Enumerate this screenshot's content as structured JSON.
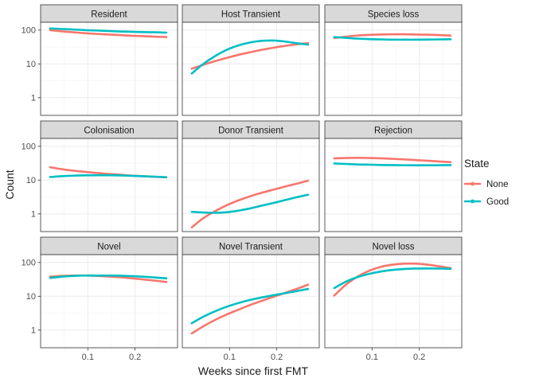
{
  "chart_data": {
    "type": "line",
    "facet_layout": "3x3",
    "xlabel": "Weeks since first FMT",
    "ylabel": "Count",
    "xlim": [
      0.0,
      0.29
    ],
    "ylim": [
      0.3,
      170
    ],
    "y_scale": "log10",
    "x_ticks": [
      0.1,
      0.2
    ],
    "x_tick_labels": [
      "0.1",
      "0.2"
    ],
    "y_ticks": [
      1,
      10,
      100
    ],
    "y_tick_labels": [
      "1",
      "10",
      "100"
    ],
    "grid": true,
    "legend": {
      "title": "State",
      "placement": "right",
      "entries": [
        {
          "name": "None",
          "color": "#F8766D"
        },
        {
          "name": "Good",
          "color": "#00BFC4"
        }
      ]
    },
    "x": [
      0.02,
      0.0446,
      0.0693,
      0.0939,
      0.1186,
      0.1432,
      0.1679,
      0.1925,
      0.2171,
      0.2418,
      0.2664
    ],
    "panels": [
      {
        "title": "Resident",
        "series": [
          {
            "name": "None",
            "values": [
              100,
              92,
              86,
              81,
              77,
              74,
              71,
              68,
              66,
              64,
              62
            ]
          },
          {
            "name": "Good",
            "values": [
              112,
              108,
              104,
              100,
              97,
              94,
              91,
              89,
              87,
              86,
              84
            ]
          }
        ]
      },
      {
        "title": "Host Transient",
        "series": [
          {
            "name": "None",
            "values": [
              7.2,
              9.4,
              12,
              15,
              18.5,
              22,
              26,
              30,
              34,
              38,
              41
            ]
          },
          {
            "name": "Good",
            "values": [
              5.2,
              10,
              17,
              26,
              35,
              43,
              48,
              49,
              46,
              41,
              37
            ]
          }
        ]
      },
      {
        "title": "Species loss",
        "series": [
          {
            "name": "None",
            "values": [
              58,
              64,
              69,
              72,
              74,
              75,
              75,
              74,
              73,
              71,
              69
            ]
          },
          {
            "name": "Good",
            "values": [
              62,
              59,
              56,
              54,
              53,
              52,
              52,
              52,
              52.5,
              53,
              53.5
            ]
          }
        ]
      },
      {
        "title": "Colonisation",
        "series": [
          {
            "name": "None",
            "values": [
              24,
              21,
              19,
              17.5,
              16.3,
              15.2,
              14.4,
              13.6,
              13,
              12.5,
              12.1
            ]
          },
          {
            "name": "Good",
            "values": [
              12.3,
              13,
              13.5,
              13.8,
              13.9,
              13.9,
              13.7,
              13.4,
              13,
              12.6,
              12.2
            ]
          }
        ]
      },
      {
        "title": "Donor Transient",
        "series": [
          {
            "name": "None",
            "values": [
              0.4,
              0.75,
              1.2,
              1.8,
              2.5,
              3.3,
              4.2,
              5.2,
              6.4,
              7.8,
              9.6
            ]
          },
          {
            "name": "Good",
            "values": [
              1.15,
              1.1,
              1.08,
              1.12,
              1.25,
              1.45,
              1.75,
              2.1,
              2.55,
              3.1,
              3.7
            ]
          }
        ]
      },
      {
        "title": "Rejection",
        "series": [
          {
            "name": "None",
            "values": [
              44,
              45,
              45.5,
              45,
              44,
              42.5,
              41,
              39,
              37.5,
              35.5,
              34
            ]
          },
          {
            "name": "Good",
            "values": [
              31,
              30,
              29,
              28.5,
              28,
              27.7,
              27.5,
              27.4,
              27.4,
              27.5,
              27.7
            ]
          }
        ]
      },
      {
        "title": "Novel",
        "series": [
          {
            "name": "None",
            "values": [
              38,
              40,
              41,
              41,
              40,
              38.5,
              36.5,
              34,
              31.5,
              29,
              26.5
            ]
          },
          {
            "name": "Good",
            "values": [
              35,
              38,
              40,
              41,
              41,
              41,
              40.5,
              39.5,
              38,
              36,
              34
            ]
          }
        ]
      },
      {
        "title": "Novel Transient",
        "series": [
          {
            "name": "None",
            "values": [
              0.8,
              1.3,
              2.0,
              2.9,
              4.0,
              5.5,
              7.3,
              9.6,
              12.5,
              16.5,
              22
            ]
          },
          {
            "name": "Good",
            "values": [
              1.6,
              2.5,
              3.6,
              4.9,
              6.3,
              7.8,
              9.2,
              10.7,
              12.3,
              14.2,
              16.5
            ]
          }
        ]
      },
      {
        "title": "Novel loss",
        "series": [
          {
            "name": "None",
            "values": [
              10.5,
              22,
              38,
              57,
              74,
              86,
              92,
              92,
              86,
              77,
              68
            ]
          },
          {
            "name": "Good",
            "values": [
              17.5,
              27,
              37,
              46,
              54,
              60,
              64,
              66,
              66.5,
              66,
              65
            ]
          }
        ]
      }
    ]
  }
}
